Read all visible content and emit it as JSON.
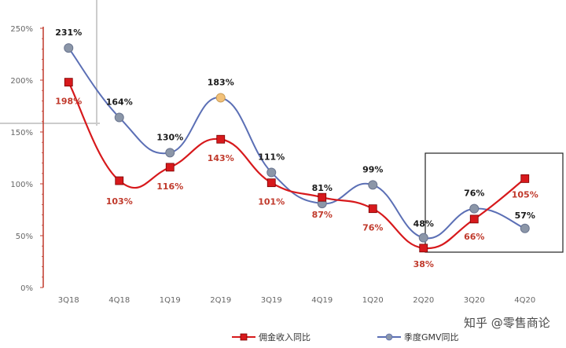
{
  "chart_data": {
    "type": "line",
    "categories": [
      "3Q18",
      "4Q18",
      "1Q19",
      "2Q19",
      "3Q19",
      "4Q19",
      "1Q20",
      "2Q20",
      "3Q20",
      "4Q20"
    ],
    "y_ticks": [
      "0%",
      "50%",
      "100%",
      "150%",
      "200%",
      "250%"
    ],
    "ylim": [
      0,
      250
    ],
    "grid": false,
    "legend_position": "bottom",
    "series": [
      {
        "name": "佣金收入同比",
        "color": "#d7191c",
        "marker": "square",
        "values": [
          198,
          103,
          116,
          143,
          101,
          87,
          76,
          38,
          66,
          105
        ],
        "labels": [
          "198%",
          "103%",
          "116%",
          "143%",
          "101%",
          "87%",
          "76%",
          "38%",
          "66%",
          "105%"
        ]
      },
      {
        "name": "季度GMV同比",
        "color": "#5b6fb5",
        "marker": "circle",
        "values": [
          231,
          164,
          130,
          183,
          111,
          81,
          99,
          48,
          76,
          57
        ],
        "labels": [
          "231%",
          "164%",
          "130%",
          "183%",
          "111%",
          "81%",
          "99%",
          "48%",
          "76%",
          "57%"
        ]
      }
    ]
  },
  "watermark": "知乎 @零售商论"
}
